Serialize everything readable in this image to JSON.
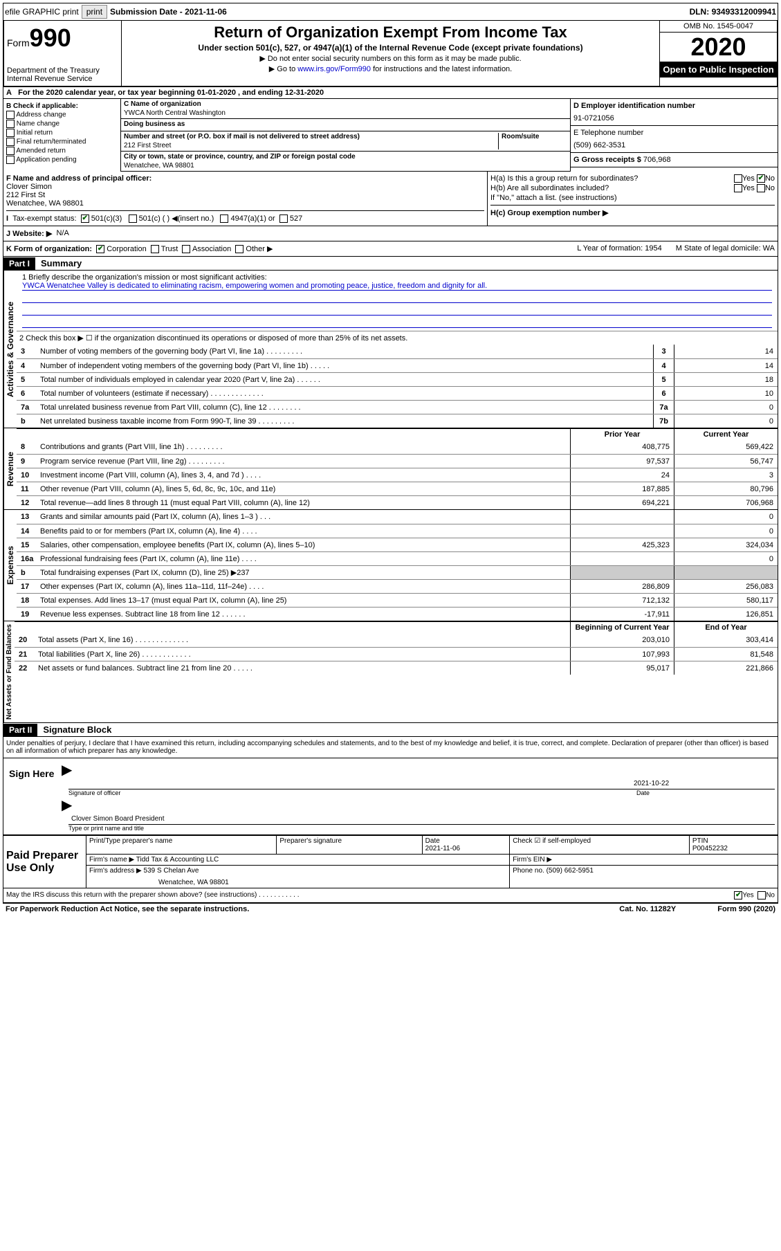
{
  "topbar": {
    "efile": "efile GRAPHIC print",
    "subdate_lbl": "Submission Date - ",
    "subdate": "2021-11-06",
    "dln_lbl": "DLN: ",
    "dln": "93493312009941"
  },
  "header": {
    "form_word": "Form",
    "form_num": "990",
    "dept": "Department of the Treasury\nInternal Revenue Service",
    "title": "Return of Organization Exempt From Income Tax",
    "sub": "Under section 501(c), 527, or 4947(a)(1) of the Internal Revenue Code (except private foundations)",
    "note1": "▶ Do not enter social security numbers on this form as it may be made public.",
    "note2a": "▶ Go to ",
    "note2_link": "www.irs.gov/Form990",
    "note2b": " for instructions and the latest information.",
    "omb": "OMB No. 1545-0047",
    "year": "2020",
    "inspect": "Open to Public Inspection"
  },
  "sectionA": "For the 2020 calendar year, or tax year beginning 01-01-2020   , and ending 12-31-2020",
  "B": {
    "hdr": "B Check if applicable:",
    "items": [
      "Address change",
      "Name change",
      "Initial return",
      "Final return/terminated",
      "Amended return",
      "Application pending"
    ]
  },
  "C": {
    "name_lbl": "C Name of organization",
    "name": "YWCA North Central Washington",
    "dba_lbl": "Doing business as",
    "dba": "",
    "addr_lbl": "Number and street (or P.O. box if mail is not delivered to street address)",
    "room_lbl": "Room/suite",
    "addr": "212 First Street",
    "city_lbl": "City or town, state or province, country, and ZIP or foreign postal code",
    "city": "Wenatchee, WA  98801"
  },
  "D": {
    "lbl": "D Employer identification number",
    "val": "91-0721056"
  },
  "E": {
    "lbl": "E Telephone number",
    "val": "(509) 662-3531"
  },
  "G": {
    "lbl": "G Gross receipts $ ",
    "val": "706,968"
  },
  "F": {
    "lbl": "F  Name and address of principal officer:",
    "name": "Clover Simon",
    "addr1": "212 First St",
    "addr2": "Wenatchee, WA  98801"
  },
  "H": {
    "a": "H(a)  Is this a group return for subordinates?",
    "a_yes": "Yes",
    "a_no": "No",
    "b": "H(b)  Are all subordinates included?",
    "b_note": "If \"No,\" attach a list. (see instructions)",
    "c": "H(c)  Group exemption number ▶"
  },
  "I": {
    "lbl": "Tax-exempt status:",
    "opts": [
      "501(c)(3)",
      "501(c) (  ) ◀(insert no.)",
      "4947(a)(1) or",
      "527"
    ]
  },
  "J": {
    "lbl": "J   Website: ▶",
    "val": "N/A"
  },
  "K": {
    "lbl": "K Form of organization:",
    "opts": [
      "Corporation",
      "Trust",
      "Association",
      "Other ▶"
    ],
    "L": "L Year of formation: 1954",
    "M": "M State of legal domicile: WA"
  },
  "part1": {
    "hdr": "Part I",
    "title": "Summary",
    "mission_lbl": "1   Briefly describe the organization's mission or most significant activities:",
    "mission": "YWCA Wenatchee Valley is dedicated to eliminating racism, empowering women and promoting peace, justice, freedom and dignity for all.",
    "line2": "2    Check this box ▶ ☐  if the organization discontinued its operations or disposed of more than 25% of its net assets.",
    "gov_label": "Activities & Governance",
    "gov": [
      {
        "n": "3",
        "t": "Number of voting members of the governing body (Part VI, line 1a)   .   .   .   .   .   .   .   .   .",
        "b": "3",
        "v": "14"
      },
      {
        "n": "4",
        "t": "Number of independent voting members of the governing body (Part VI, line 1b)   .   .   .   .   .",
        "b": "4",
        "v": "14"
      },
      {
        "n": "5",
        "t": "Total number of individuals employed in calendar year 2020 (Part V, line 2a)   .   .   .   .   .   .",
        "b": "5",
        "v": "18"
      },
      {
        "n": "6",
        "t": "Total number of volunteers (estimate if necessary)   .   .   .   .   .   .   .   .   .   .   .   .   .",
        "b": "6",
        "v": "10"
      },
      {
        "n": "7a",
        "t": "Total unrelated business revenue from Part VIII, column (C), line 12   .   .   .   .   .   .   .   .",
        "b": "7a",
        "v": "0"
      },
      {
        "n": "b",
        "t": "Net unrelated business taxable income from Form 990-T, line 39   .   .   .   .   .   .   .   .   .",
        "b": "7b",
        "v": "0"
      }
    ],
    "col_prior": "Prior Year",
    "col_curr": "Current Year",
    "rev_label": "Revenue",
    "rev": [
      {
        "n": "8",
        "t": "Contributions and grants (Part VIII, line 1h)   .   .   .   .   .   .   .   .   .",
        "p": "408,775",
        "c": "569,422"
      },
      {
        "n": "9",
        "t": "Program service revenue (Part VIII, line 2g)   .   .   .   .   .   .   .   .   .",
        "p": "97,537",
        "c": "56,747"
      },
      {
        "n": "10",
        "t": "Investment income (Part VIII, column (A), lines 3, 4, and 7d )   .   .   .   .",
        "p": "24",
        "c": "3"
      },
      {
        "n": "11",
        "t": "Other revenue (Part VIII, column (A), lines 5, 6d, 8c, 9c, 10c, and 11e)",
        "p": "187,885",
        "c": "80,796"
      },
      {
        "n": "12",
        "t": "Total revenue—add lines 8 through 11 (must equal Part VIII, column (A), line 12)",
        "p": "694,221",
        "c": "706,968"
      }
    ],
    "exp_label": "Expenses",
    "exp": [
      {
        "n": "13",
        "t": "Grants and similar amounts paid (Part IX, column (A), lines 1–3 )   .   .   .",
        "p": "",
        "c": "0"
      },
      {
        "n": "14",
        "t": "Benefits paid to or for members (Part IX, column (A), line 4)   .   .   .   .",
        "p": "",
        "c": "0"
      },
      {
        "n": "15",
        "t": "Salaries, other compensation, employee benefits (Part IX, column (A), lines 5–10)",
        "p": "425,323",
        "c": "324,034"
      },
      {
        "n": "16a",
        "t": "Professional fundraising fees (Part IX, column (A), line 11e)   .   .   .   .",
        "p": "",
        "c": "0"
      },
      {
        "n": "b",
        "t": "Total fundraising expenses (Part IX, column (D), line 25) ▶237",
        "p": "shade",
        "c": "shade"
      },
      {
        "n": "17",
        "t": "Other expenses (Part IX, column (A), lines 11a–11d, 11f–24e)   .   .   .   .",
        "p": "286,809",
        "c": "256,083"
      },
      {
        "n": "18",
        "t": "Total expenses. Add lines 13–17 (must equal Part IX, column (A), line 25)",
        "p": "712,132",
        "c": "580,117"
      },
      {
        "n": "19",
        "t": "Revenue less expenses. Subtract line 18 from line 12   .   .   .   .   .   .",
        "p": "-17,911",
        "c": "126,851"
      }
    ],
    "col_beg": "Beginning of Current Year",
    "col_end": "End of Year",
    "net_label": "Net Assets or Fund Balances",
    "net": [
      {
        "n": "20",
        "t": "Total assets (Part X, line 16)   .   .   .   .   .   .   .   .   .   .   .   .   .",
        "p": "203,010",
        "c": "303,414"
      },
      {
        "n": "21",
        "t": "Total liabilities (Part X, line 26)   .   .   .   .   .   .   .   .   .   .   .   .",
        "p": "107,993",
        "c": "81,548"
      },
      {
        "n": "22",
        "t": "Net assets or fund balances. Subtract line 21 from line 20   .   .   .   .   .",
        "p": "95,017",
        "c": "221,866"
      }
    ]
  },
  "part2": {
    "hdr": "Part II",
    "title": "Signature Block",
    "penalty": "Under penalties of perjury, I declare that I have examined this return, including accompanying schedules and statements, and to the best of my knowledge and belief, it is true, correct, and complete. Declaration of preparer (other than officer) is based on all information of which preparer has any knowledge.",
    "sign_here": "Sign Here",
    "sig_officer": "Signature of officer",
    "sig_date": "2021-10-22",
    "date_lbl": "Date",
    "officer_name": "Clover Simon  Board President",
    "type_name": "Type or print name and title",
    "paid_prep": "Paid Preparer Use Only",
    "prep_name_lbl": "Print/Type preparer's name",
    "prep_sig_lbl": "Preparer's signature",
    "prep_date_lbl": "Date",
    "prep_date": "2021-11-06",
    "check_lbl": "Check ☑ if self-employed",
    "ptin_lbl": "PTIN",
    "ptin": "P00452232",
    "firm_name_lbl": "Firm's name     ▶ ",
    "firm_name": "Tidd Tax & Accounting LLC",
    "firm_ein_lbl": "Firm's EIN ▶",
    "firm_addr_lbl": "Firm's address ▶ ",
    "firm_addr": "539 S Chelan Ave",
    "firm_city": "Wenatchee, WA  98801",
    "phone_lbl": "Phone no. ",
    "phone": "(509) 662-5951",
    "discuss": "May the IRS discuss this return with the preparer shown above? (see instructions)   .   .   .   .   .   .   .   .   .   .   .",
    "discuss_yes": "Yes",
    "discuss_no": "No"
  },
  "footer": {
    "left": "For Paperwork Reduction Act Notice, see the separate instructions.",
    "mid": "Cat. No. 11282Y",
    "right": "Form 990 (2020)"
  }
}
